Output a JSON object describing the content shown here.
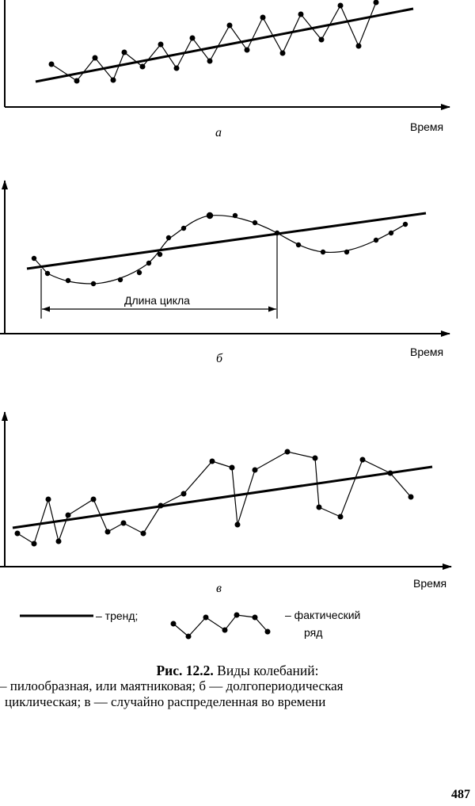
{
  "charts": {
    "a": {
      "panel_label": "а",
      "axis_label": "Время"
    },
    "b": {
      "panel_label": "б",
      "axis_label": "Время",
      "cycle_label": "Длина цикла"
    },
    "v": {
      "panel_label": "в",
      "axis_label": "Время"
    }
  },
  "legend": {
    "trend_label": "– тренд;",
    "series_label_line1": "– фактический",
    "series_label_line2": "ряд"
  },
  "caption": {
    "figure_number": "Рис. 12.2.",
    "title": " Виды колебаний:",
    "line2": "– пилообразная, или маятниковая; б — долгопериодическая",
    "line3": "циклическая; в — случайно распределенная во времени"
  },
  "page_number": "487"
}
